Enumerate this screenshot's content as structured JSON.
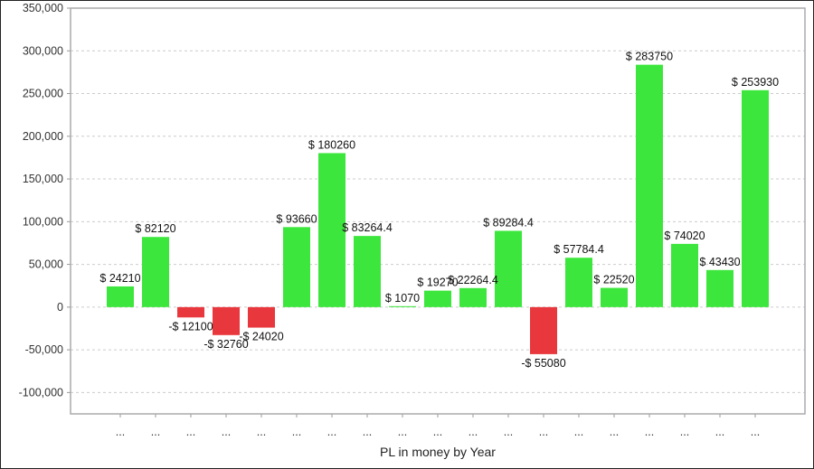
{
  "chart_data": {
    "type": "bar",
    "title": "",
    "xlabel": "PL in money by Year",
    "ylabel": "",
    "ylim": [
      -125000,
      350000
    ],
    "yticks": [
      -100000,
      -50000,
      0,
      50000,
      100000,
      150000,
      200000,
      250000,
      300000,
      350000
    ],
    "ytick_labels": [
      "-100,000",
      "-50,000",
      "0",
      "50,000",
      "100,000",
      "150,000",
      "200,000",
      "250,000",
      "300,000",
      "350,000"
    ],
    "categories": [
      "...",
      "...",
      "...",
      "...",
      "...",
      "...",
      "...",
      "...",
      "...",
      "...",
      "...",
      "...",
      "...",
      "...",
      "...",
      "...",
      "...",
      "...",
      "..."
    ],
    "values": [
      24210,
      82120,
      -12100,
      -32760,
      -24020,
      93660,
      180260,
      83264.4,
      1070,
      19270,
      22264.4,
      89284.4,
      -55080,
      57784.4,
      22520,
      283750,
      74020,
      43430,
      253930
    ],
    "data_labels": [
      "$ 24210",
      "$ 82120",
      "-$ 12100",
      "-$ 32760",
      "-$ 24020",
      "$ 93660",
      "$ 180260",
      "$ 83264.4",
      "$ 1070",
      "$ 19270",
      "$ 22264.4",
      "$ 89284.4",
      "-$ 55080",
      "$ 57784.4",
      "$ 22520",
      "$ 283750",
      "$ 74020",
      "$ 43430",
      "$ 253930"
    ],
    "colors": {
      "positive": "#3de63d",
      "negative": "#e8383d"
    },
    "grid": true,
    "legend": "none"
  }
}
